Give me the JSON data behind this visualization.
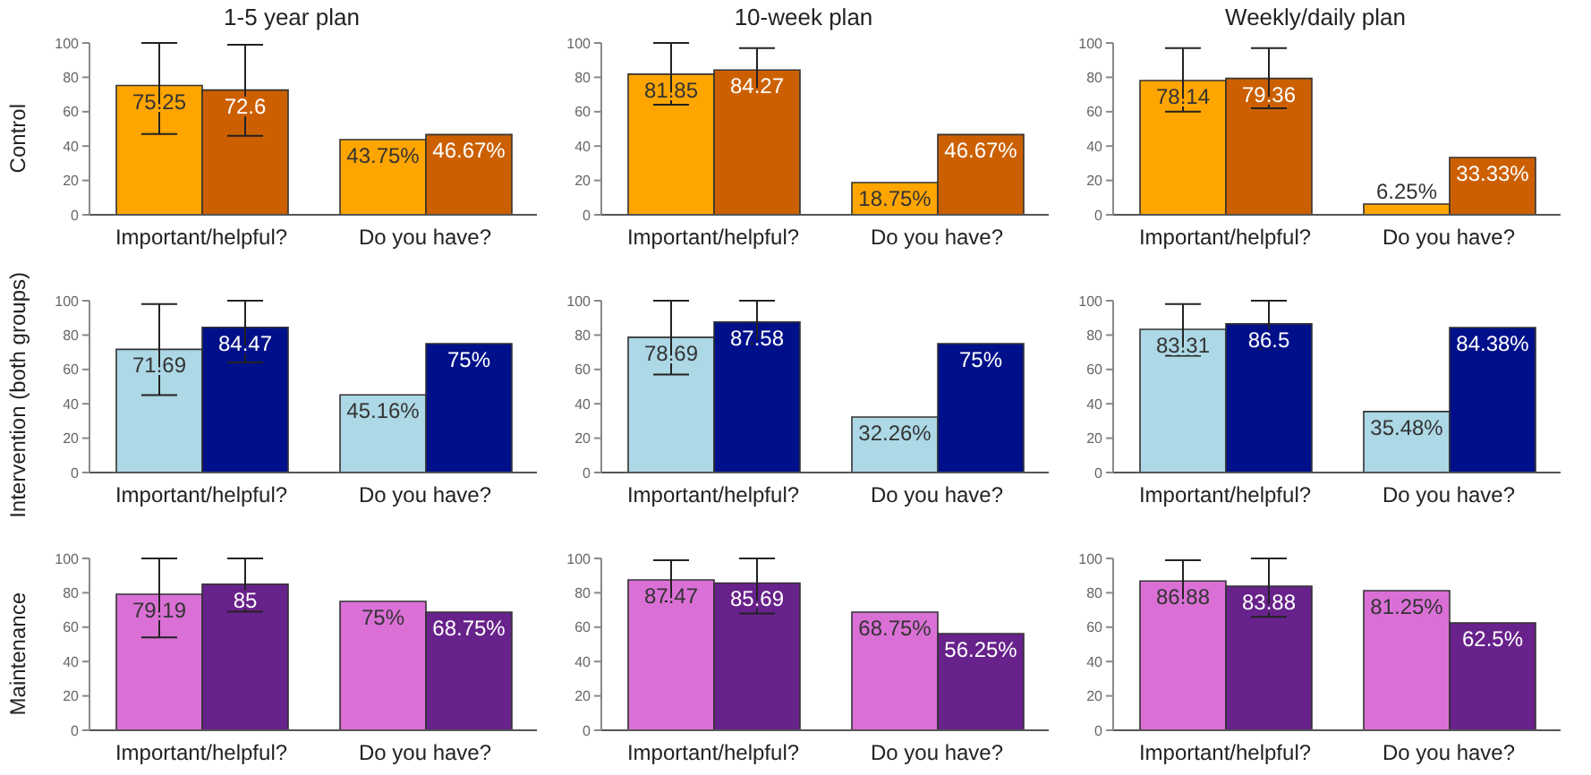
{
  "chart_data": [
    {
      "type": "bar",
      "title": "1-5 year plan",
      "ylabel": "Control",
      "categories": [
        "Important/helpful?",
        "Do you have?"
      ],
      "ylim": [
        0,
        100
      ],
      "yticks": [
        0,
        20,
        40,
        60,
        80,
        100
      ],
      "grid": false,
      "series": [
        {
          "color": "#ffa500",
          "values": [
            75.25,
            43.75
          ],
          "value_labels": [
            "75.25",
            "43.75%"
          ],
          "errors": [
            [
              47,
              100
            ],
            null
          ]
        },
        {
          "color": "#cc6000",
          "values": [
            72.6,
            46.67
          ],
          "value_labels": [
            "72.6",
            "46.67%"
          ],
          "errors": [
            [
              46,
              99
            ],
            null
          ]
        }
      ]
    },
    {
      "type": "bar",
      "title": "10-week plan",
      "categories": [
        "Important/helpful?",
        "Do you have?"
      ],
      "ylim": [
        0,
        100
      ],
      "yticks": [
        0,
        20,
        40,
        60,
        80,
        100
      ],
      "grid": false,
      "series": [
        {
          "color": "#ffa500",
          "values": [
            81.85,
            18.75
          ],
          "value_labels": [
            "81.85",
            "18.75%"
          ],
          "errors": [
            [
              64,
              100
            ],
            null
          ]
        },
        {
          "color": "#cc6000",
          "values": [
            84.27,
            46.67
          ],
          "value_labels": [
            "84.27",
            "46.67%"
          ],
          "errors": [
            [
              72,
              97
            ],
            null
          ]
        }
      ]
    },
    {
      "type": "bar",
      "title": "Weekly/daily plan",
      "categories": [
        "Important/helpful?",
        "Do you have?"
      ],
      "ylim": [
        0,
        100
      ],
      "yticks": [
        0,
        20,
        40,
        60,
        80,
        100
      ],
      "grid": false,
      "series": [
        {
          "color": "#ffa500",
          "values": [
            78.14,
            6.25
          ],
          "value_labels": [
            "78.14",
            "6.25%"
          ],
          "errors": [
            [
              60,
              97
            ],
            null
          ]
        },
        {
          "color": "#cc6000",
          "values": [
            79.36,
            33.33
          ],
          "value_labels": [
            "79.36",
            "33.33%"
          ],
          "errors": [
            [
              62,
              97
            ],
            null
          ]
        }
      ]
    },
    {
      "type": "bar",
      "ylabel": "Intervention (both groups)",
      "categories": [
        "Important/helpful?",
        "Do you have?"
      ],
      "ylim": [
        0,
        100
      ],
      "yticks": [
        0,
        20,
        40,
        60,
        80,
        100
      ],
      "grid": false,
      "series": [
        {
          "color": "#add8e6",
          "values": [
            71.69,
            45.16
          ],
          "value_labels": [
            "71.69",
            "45.16%"
          ],
          "errors": [
            [
              45,
              98
            ],
            null
          ]
        },
        {
          "color": "#00108a",
          "values": [
            84.47,
            75
          ],
          "value_labels": [
            "84.47",
            "75%"
          ],
          "errors": [
            [
              64,
              100
            ],
            null
          ]
        }
      ]
    },
    {
      "type": "bar",
      "categories": [
        "Important/helpful?",
        "Do you have?"
      ],
      "ylim": [
        0,
        100
      ],
      "yticks": [
        0,
        20,
        40,
        60,
        80,
        100
      ],
      "grid": false,
      "series": [
        {
          "color": "#add8e6",
          "values": [
            78.69,
            32.26
          ],
          "value_labels": [
            "78.69",
            "32.26%"
          ],
          "errors": [
            [
              57,
              100
            ],
            null
          ]
        },
        {
          "color": "#00108a",
          "values": [
            87.58,
            75
          ],
          "value_labels": [
            "87.58",
            "75%"
          ],
          "errors": [
            [
              75,
              100
            ],
            null
          ]
        }
      ]
    },
    {
      "type": "bar",
      "categories": [
        "Important/helpful?",
        "Do you have?"
      ],
      "ylim": [
        0,
        100
      ],
      "yticks": [
        0,
        20,
        40,
        60,
        80,
        100
      ],
      "grid": false,
      "series": [
        {
          "color": "#add8e6",
          "values": [
            83.31,
            35.48
          ],
          "value_labels": [
            "83.31",
            "35.48%"
          ],
          "errors": [
            [
              68,
              98
            ],
            null
          ]
        },
        {
          "color": "#00108a",
          "values": [
            86.5,
            84.38
          ],
          "value_labels": [
            "86.5",
            "84.38%"
          ],
          "errors": [
            [
              72,
              100
            ],
            null
          ]
        }
      ]
    },
    {
      "type": "bar",
      "ylabel": "Maintenance",
      "categories": [
        "Important/helpful?",
        "Do you have?"
      ],
      "ylim": [
        0,
        100
      ],
      "yticks": [
        0,
        20,
        40,
        60,
        80,
        100
      ],
      "grid": false,
      "series": [
        {
          "color": "#da70d6",
          "values": [
            79.19,
            75
          ],
          "value_labels": [
            "79.19",
            "75%"
          ],
          "errors": [
            [
              54,
              100
            ],
            null
          ]
        },
        {
          "color": "#68228b",
          "values": [
            85,
            68.75
          ],
          "value_labels": [
            "85",
            "68.75%"
          ],
          "errors": [
            [
              69,
              100
            ],
            null
          ]
        }
      ]
    },
    {
      "type": "bar",
      "categories": [
        "Important/helpful?",
        "Do you have?"
      ],
      "ylim": [
        0,
        100
      ],
      "yticks": [
        0,
        20,
        40,
        60,
        80,
        100
      ],
      "grid": false,
      "series": [
        {
          "color": "#da70d6",
          "values": [
            87.47,
            68.75
          ],
          "value_labels": [
            "87.47",
            "68.75%"
          ],
          "errors": [
            [
              75,
              99
            ],
            null
          ]
        },
        {
          "color": "#68228b",
          "values": [
            85.69,
            56.25
          ],
          "value_labels": [
            "85.69",
            "56.25%"
          ],
          "errors": [
            [
              68,
              100
            ],
            null
          ]
        }
      ]
    },
    {
      "type": "bar",
      "categories": [
        "Important/helpful?",
        "Do you have?"
      ],
      "ylim": [
        0,
        100
      ],
      "yticks": [
        0,
        20,
        40,
        60,
        80,
        100
      ],
      "grid": false,
      "series": [
        {
          "color": "#da70d6",
          "values": [
            86.88,
            81.25
          ],
          "value_labels": [
            "86.88",
            "81.25%"
          ],
          "errors": [
            [
              75,
              99
            ],
            null
          ]
        },
        {
          "color": "#68228b",
          "values": [
            83.88,
            62.5
          ],
          "value_labels": [
            "83.88",
            "62.5%"
          ],
          "errors": [
            [
              66,
              100
            ],
            null
          ]
        }
      ]
    }
  ]
}
